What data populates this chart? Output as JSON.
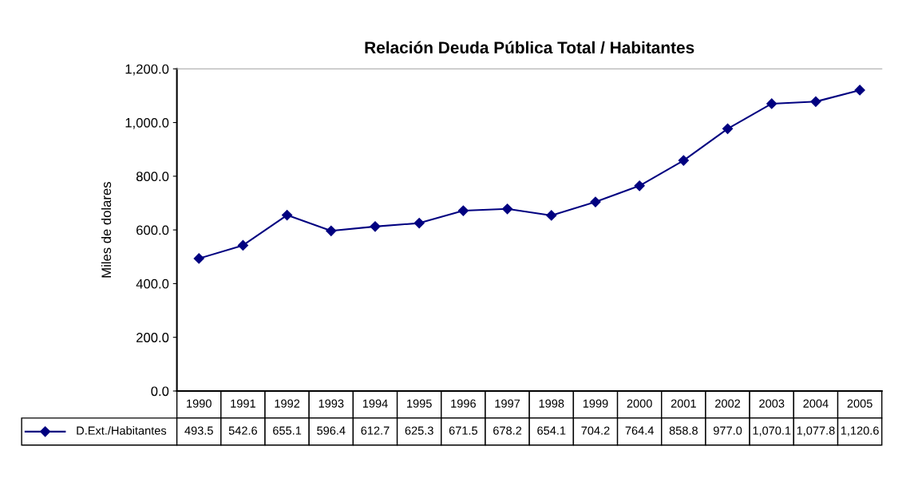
{
  "chart_data": {
    "type": "line",
    "title": "Relación Deuda Pública Total / Habitantes",
    "ylabel": "Miles de dolares",
    "categories": [
      "1990",
      "1991",
      "1992",
      "1993",
      "1994",
      "1995",
      "1996",
      "1997",
      "1998",
      "1999",
      "2000",
      "2001",
      "2002",
      "2003",
      "2004",
      "2005"
    ],
    "series": [
      {
        "name": "D.Ext./Habitantes",
        "color": "#000080",
        "values": [
          493.5,
          542.6,
          655.1,
          596.4,
          612.7,
          625.3,
          671.5,
          678.2,
          654.1,
          704.2,
          764.4,
          858.8,
          977.0,
          1070.1,
          1077.8,
          1120.6
        ],
        "value_labels": [
          "493.5",
          "542.6",
          "655.1",
          "596.4",
          "612.7",
          "625.3",
          "671.5",
          "678.2",
          "654.1",
          "704.2",
          "764.4",
          "858.8",
          "977.0",
          "1,070.1",
          "1,077.8",
          "1,120.6"
        ]
      }
    ],
    "ylim": [
      0,
      1200
    ],
    "yticks": [
      {
        "value": 0,
        "label": "0.0"
      },
      {
        "value": 200,
        "label": "200.0"
      },
      {
        "value": 400,
        "label": "400.0"
      },
      {
        "value": 600,
        "label": "600.0"
      },
      {
        "value": 800,
        "label": "800.0"
      },
      {
        "value": 1000,
        "label": "1,000.0"
      },
      {
        "value": 1200,
        "label": "1,200.0"
      }
    ],
    "marker": "diamond",
    "line_style": "solid",
    "grid": false,
    "legend": "bottom"
  }
}
